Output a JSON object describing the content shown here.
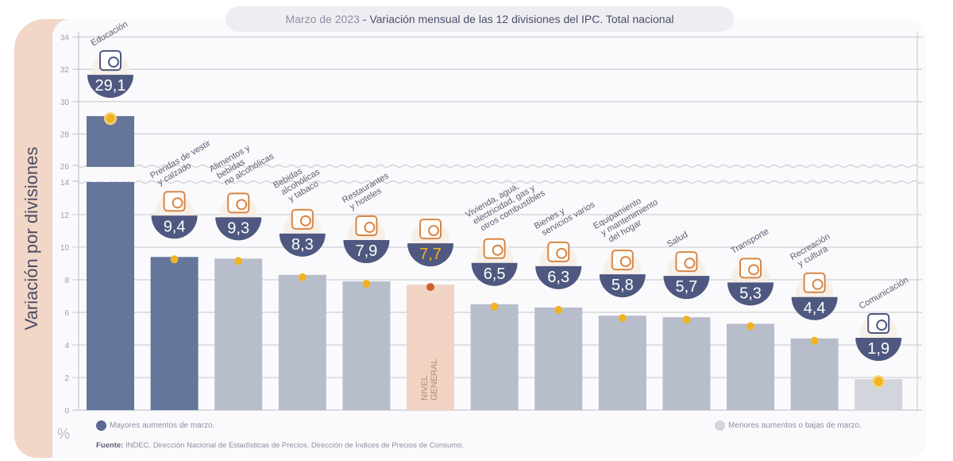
{
  "title": {
    "date": "Marzo de 2023",
    "separator": " - ",
    "text": "Variación mensual de las 12 divisiones del IPC. Total nacional"
  },
  "y_axis_title": "Variación por divisiones",
  "unit_label": "%",
  "legend": {
    "high": "Mayores aumentos de marzo.",
    "low": "Menores aumentos o bajas de marzo."
  },
  "source": {
    "label": "Fuente:",
    "text": " INDEC, Dirección Nacional de Estadísticas de Precios. Dirección de Índices de Precios de Consumo."
  },
  "colors": {
    "high": "#66769b",
    "low": "#b7bdcb",
    "lowest": "#d3d5dc",
    "general": "#f1d3c3",
    "badge": "#4f5880",
    "marker": "#f0b323",
    "general_marker": "#c8622a",
    "general_value": "#f0b323",
    "icon": "#d88644"
  },
  "chart_data": {
    "type": "bar",
    "title": "Marzo de 2023 - Variación mensual de las 12 divisiones del IPC. Total nacional",
    "xlabel": "",
    "ylabel": "Variación por divisiones (%)",
    "ylim": [
      0,
      34
    ],
    "axis_break": [
      14,
      26
    ],
    "yticks": [
      0,
      2,
      4,
      6,
      8,
      10,
      12,
      14,
      26,
      28,
      30,
      32,
      34
    ],
    "grid": true,
    "legend_position": "bottom",
    "categories": [
      "Educación",
      "Prendas de vestir y calzado",
      "Alimentos y bebidas no alcohólicas",
      "Bebidas alcohólicas y tabaco",
      "Restaurantes y hoteles",
      "Nivel general",
      "Vivienda, agua, electricidad, gas y otros combustibles",
      "Bienes y servicios varios",
      "Equipamiento y mantenimiento del hogar",
      "Salud",
      "Transporte",
      "Recreación y cultura",
      "Comunicación"
    ],
    "category_label_lines": [
      [
        "Educación"
      ],
      [
        "Prendas de vestir",
        "y calzado"
      ],
      [
        "Alimentos y",
        "bebidas",
        "no alcohólicas"
      ],
      [
        "Bebidas",
        "alcohólicas",
        "y tabaco"
      ],
      [
        "Restaurantes",
        "y hoteles"
      ],
      [],
      [
        "Vivienda, agua,",
        "electricidad, gas y",
        "otros combustibles"
      ],
      [
        "Bienes y",
        "servicios varios"
      ],
      [
        "Equipamiento",
        "y mantenimiento",
        "del hogar"
      ],
      [
        "Salud"
      ],
      [
        "Transporte"
      ],
      [
        "Recreación",
        "y cultura"
      ],
      [
        "Comunicación"
      ]
    ],
    "values": [
      29.1,
      9.4,
      9.3,
      8.3,
      7.9,
      7.7,
      6.5,
      6.3,
      5.8,
      5.7,
      5.3,
      4.4,
      1.9
    ],
    "value_labels": [
      "29,1",
      "9,4",
      "9,3",
      "8,3",
      "7,9",
      "7,7",
      "6,5",
      "6,3",
      "5,8",
      "5,7",
      "5,3",
      "4,4",
      "1,9"
    ],
    "groups": [
      "high",
      "high",
      "low",
      "low",
      "low",
      "general",
      "low",
      "low",
      "low",
      "low",
      "low",
      "low",
      "lowest"
    ],
    "icons": [
      "tablet-icon",
      "tshirt-icon",
      "food-icon",
      "bottle-icon",
      "plate-icon",
      "basket-icon",
      "lightbulb-icon",
      "scissors-icon",
      "washing-machine-icon",
      "medical-cross-icon",
      "car-icon",
      "umbrella-icon",
      "phone-icon"
    ],
    "general_bar_text": [
      "NIVEL",
      "GENERAL"
    ]
  }
}
